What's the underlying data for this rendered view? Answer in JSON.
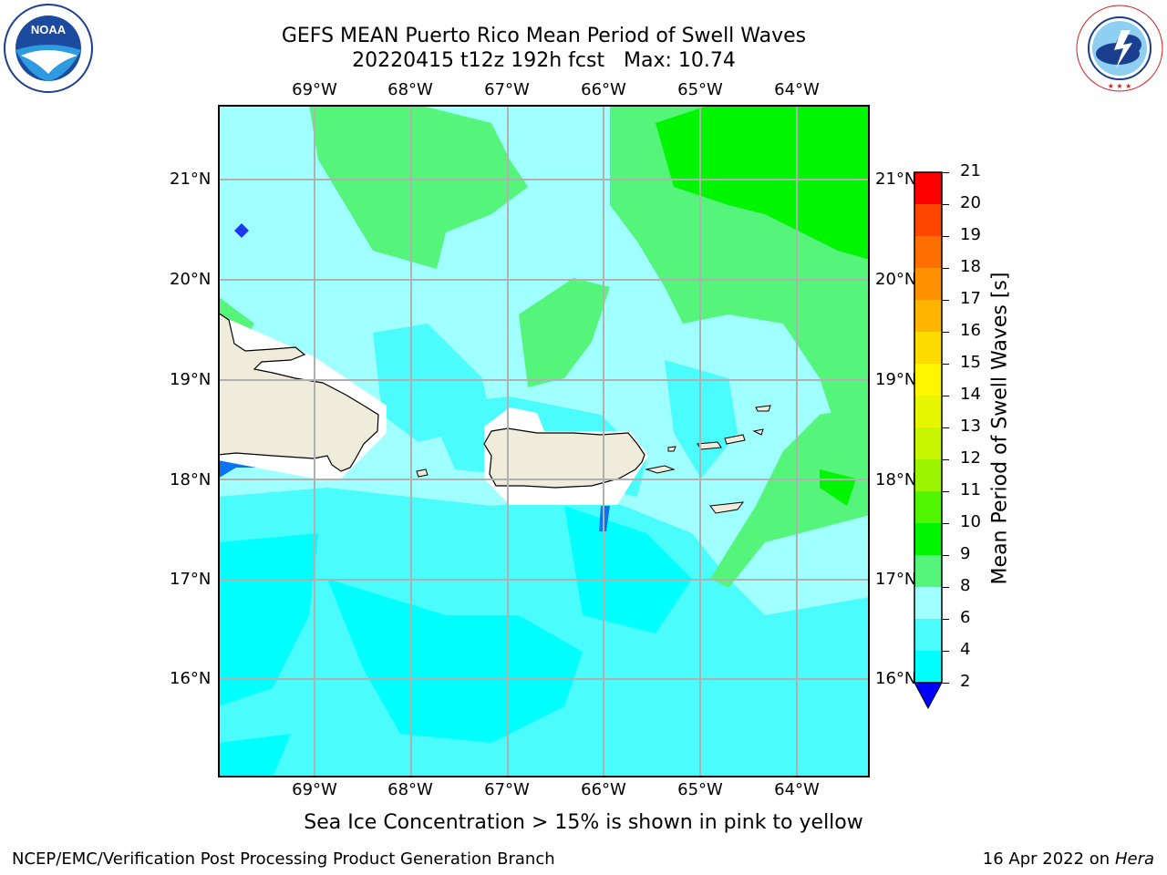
{
  "title": {
    "line1": "GEFS MEAN Puerto Rico Mean Period of Swell Waves",
    "line2": "20220415 t12z 192h fcst   Max: 10.74"
  },
  "logos": {
    "noaa_text": "NOAA",
    "noaa_ring": "NATIONAL OCEANIC AND ATMOSPHERIC ADMINISTRATION · U.S. DEPARTMENT OF COMMERCE",
    "nws_ring": "NATIONAL WEATHER SERVICE"
  },
  "map": {
    "lon_labels": [
      "69°W",
      "68°W",
      "67°W",
      "66°W",
      "65°W",
      "64°W"
    ],
    "lat_labels": [
      "21°N",
      "20°N",
      "19°N",
      "18°N",
      "17°N",
      "16°N"
    ],
    "colors": {
      "land": "#efecdb",
      "c2_4": "#0a74f0",
      "c4_6": "#00ffff",
      "c6_8": "#4bfcfc",
      "c8_9": "#a0ffff",
      "c9_10": "#55f57b",
      "c10_11": "#00f500",
      "deep": "#1e37f0",
      "grid": "#b0b0b0"
    }
  },
  "colorbar": {
    "title": "Mean Period of Swell Waves [s]",
    "ticks": [
      "21",
      "20",
      "19",
      "18",
      "17",
      "16",
      "15",
      "14",
      "13",
      "12",
      "11",
      "10",
      "9",
      "8",
      "6",
      "4",
      "2"
    ],
    "colors": [
      "#ff0000",
      "#ff2300",
      "#ff4600",
      "#ff6e00",
      "#ff9100",
      "#ffb400",
      "#ffdc00",
      "#fff500",
      "#e6f500",
      "#c8f500",
      "#9bf500",
      "#50f500",
      "#00f500",
      "#55f57b",
      "#a0ffff",
      "#4bfcfc",
      "#00ffff",
      "#0a74f0",
      "#0000ff"
    ]
  },
  "footer": {
    "note": "Sea Ice Concentration > 15% is shown in pink to yellow",
    "branch": "NCEP/EMC/Verification Post Processing Product Generation Branch",
    "date": "16 Apr 2022 on",
    "machine": "Hera"
  }
}
